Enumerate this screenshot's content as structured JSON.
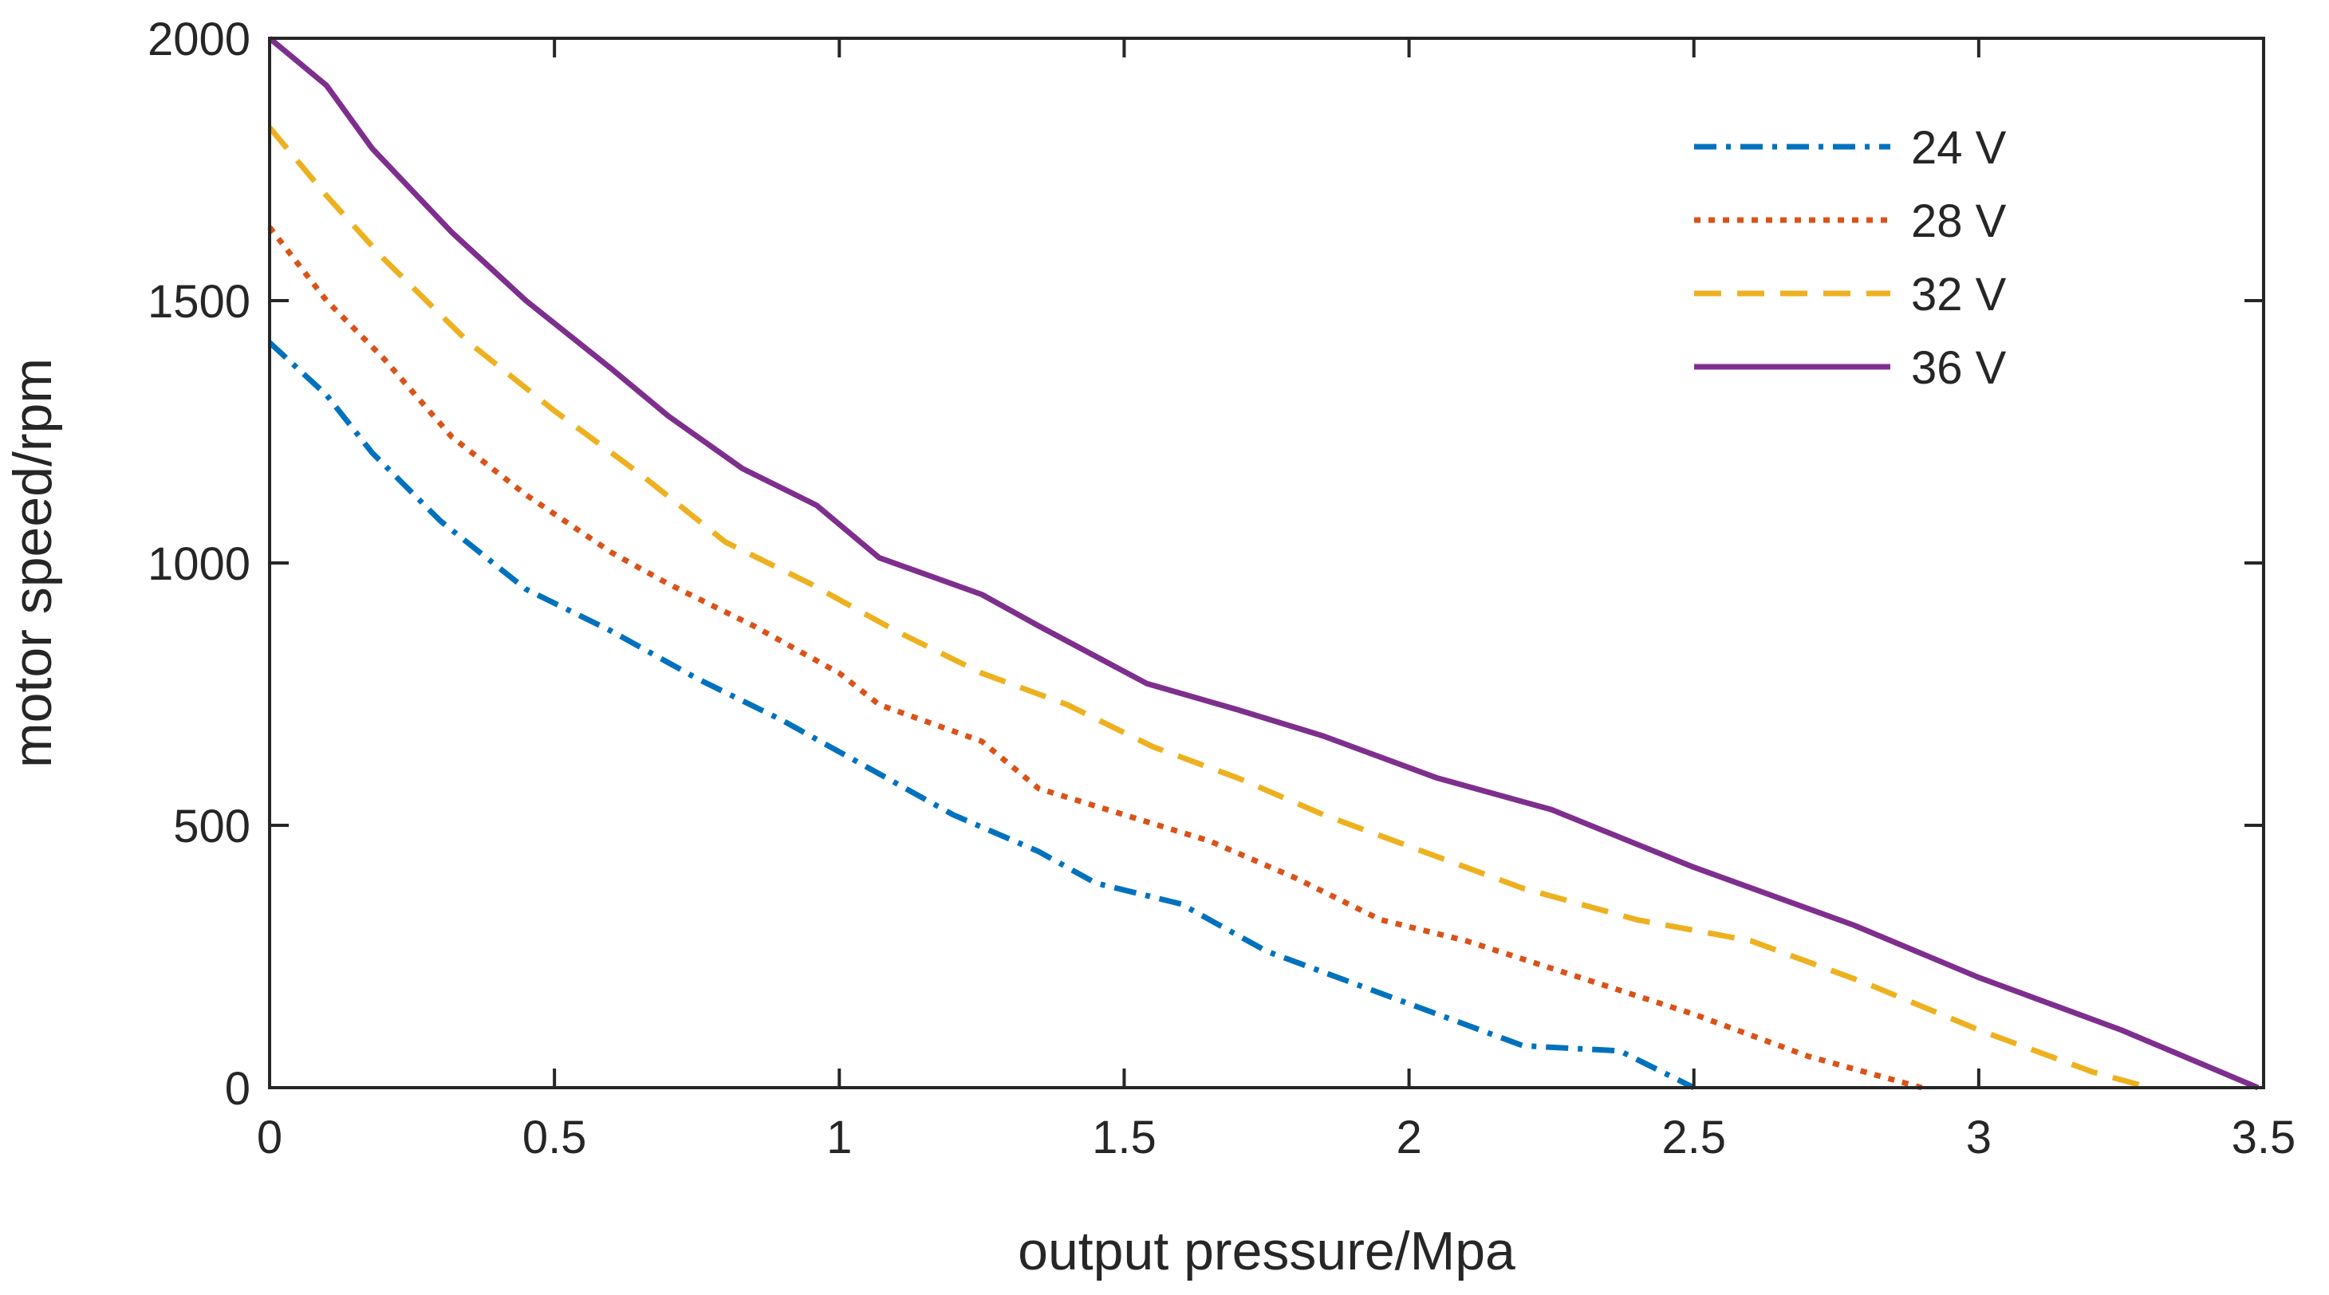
{
  "chart_data": {
    "type": "line",
    "title": "",
    "xlabel": "output pressure/Mpa",
    "ylabel": "motor speed/rpm",
    "xlim": [
      0,
      3.5
    ],
    "ylim": [
      0,
      2000
    ],
    "xticks": [
      0,
      0.5,
      1,
      1.5,
      2,
      2.5,
      3,
      3.5
    ],
    "xtick_labels": [
      "0",
      "0.5",
      "1",
      "1.5",
      "2",
      "2.5",
      "3",
      "3.5"
    ],
    "yticks": [
      0,
      500,
      1000,
      1500,
      2000
    ],
    "ytick_labels": [
      "0",
      "500",
      "1000",
      "1500",
      "2000"
    ],
    "grid": false,
    "legend_position": "top-right",
    "series": [
      {
        "name": "24 V",
        "color": "#0072BD",
        "style": "dashdot",
        "x": [
          0,
          0.1,
          0.18,
          0.3,
          0.45,
          0.6,
          0.75,
          0.9,
          1.05,
          1.2,
          1.35,
          1.45,
          1.6,
          1.75,
          1.9,
          2.05,
          2.2,
          2.37,
          2.5
        ],
        "y": [
          1420,
          1320,
          1210,
          1080,
          950,
          870,
          780,
          700,
          610,
          520,
          450,
          390,
          350,
          260,
          200,
          140,
          80,
          70,
          0
        ]
      },
      {
        "name": "28 V",
        "color": "#D95319",
        "style": "dotted",
        "x": [
          0,
          0.1,
          0.2,
          0.32,
          0.45,
          0.6,
          0.7,
          0.85,
          1.0,
          1.07,
          1.25,
          1.35,
          1.5,
          1.65,
          1.8,
          1.95,
          2.1,
          2.3,
          2.5,
          2.7,
          2.9
        ],
        "y": [
          1640,
          1500,
          1390,
          1240,
          1130,
          1020,
          960,
          880,
          790,
          730,
          660,
          570,
          520,
          470,
          400,
          320,
          280,
          210,
          140,
          60,
          0
        ]
      },
      {
        "name": "32 V",
        "color": "#EDB120",
        "style": "dashed",
        "x": [
          0,
          0.1,
          0.2,
          0.35,
          0.5,
          0.65,
          0.8,
          0.95,
          1.1,
          1.25,
          1.4,
          1.55,
          1.7,
          1.85,
          2.0,
          2.2,
          2.4,
          2.6,
          2.8,
          3.0,
          3.2,
          3.3
        ],
        "y": [
          1830,
          1700,
          1580,
          1420,
          1290,
          1170,
          1040,
          960,
          870,
          790,
          730,
          650,
          590,
          520,
          460,
          380,
          320,
          280,
          200,
          110,
          30,
          0
        ]
      },
      {
        "name": "36 V",
        "color": "#7E2F8E",
        "style": "solid",
        "x": [
          0,
          0.1,
          0.18,
          0.32,
          0.45,
          0.6,
          0.7,
          0.83,
          0.96,
          1.07,
          1.25,
          1.35,
          1.54,
          1.7,
          1.85,
          2.05,
          2.25,
          2.5,
          2.78,
          3.0,
          3.25,
          3.49
        ],
        "y": [
          2000,
          1910,
          1790,
          1630,
          1500,
          1370,
          1280,
          1180,
          1110,
          1010,
          940,
          880,
          770,
          720,
          670,
          590,
          530,
          420,
          310,
          210,
          110,
          0
        ]
      }
    ]
  }
}
